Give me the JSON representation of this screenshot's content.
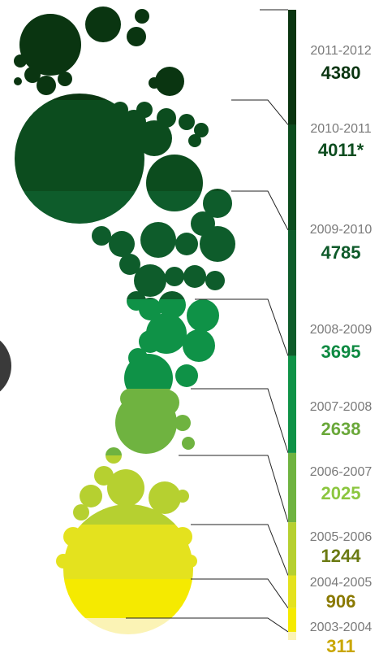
{
  "chart_data": {
    "type": "stacked-column",
    "categories": [
      "2003-2004",
      "2004-2005",
      "2005-2006",
      "2006-2007",
      "2007-2008",
      "2008-2009",
      "2009-2010",
      "2010-2011",
      "2011-2012"
    ],
    "values": [
      311,
      906,
      1244,
      2025,
      2638,
      3695,
      4785,
      4011,
      4380
    ],
    "value_labels": [
      "311",
      "906",
      "1244",
      "2025",
      "2638",
      "3695",
      "4785",
      "4011*",
      "4380"
    ],
    "colors": [
      "#fbf3b5",
      "#f5ea00",
      "#e4e21e",
      "#b6d030",
      "#6fb340",
      "#0f9247",
      "#0e5c2b",
      "#0c4c1e",
      "#0a3511"
    ],
    "label_colors": [
      "#c9a600",
      "#8a7900",
      "#6b7a12",
      "#8cc63f",
      "#6aa83a",
      "#0e8a42",
      "#0e5a2a",
      "#0d4d1f",
      "#0a3511"
    ]
  }
}
